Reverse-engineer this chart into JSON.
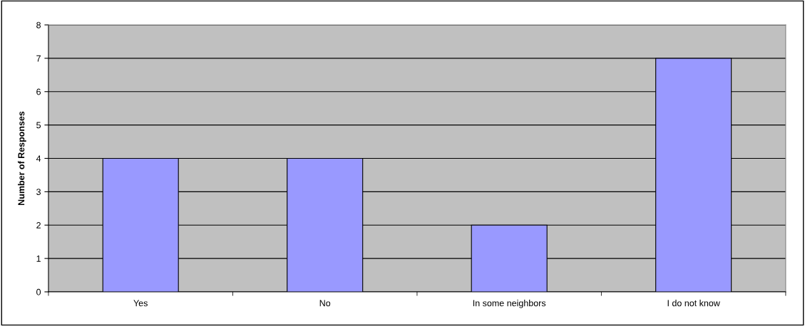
{
  "chart_data": {
    "type": "bar",
    "ylabel": "Number of Responses",
    "categories": [
      "Yes",
      "No",
      "In some neighbors",
      "I do not know"
    ],
    "values": [
      4,
      4,
      2,
      7
    ],
    "color": "#9999ff",
    "ylim": [
      0,
      8
    ],
    "yticks": [
      0,
      1,
      2,
      3,
      4,
      5,
      6,
      7,
      8
    ],
    "grid": "y",
    "legend": false
  }
}
